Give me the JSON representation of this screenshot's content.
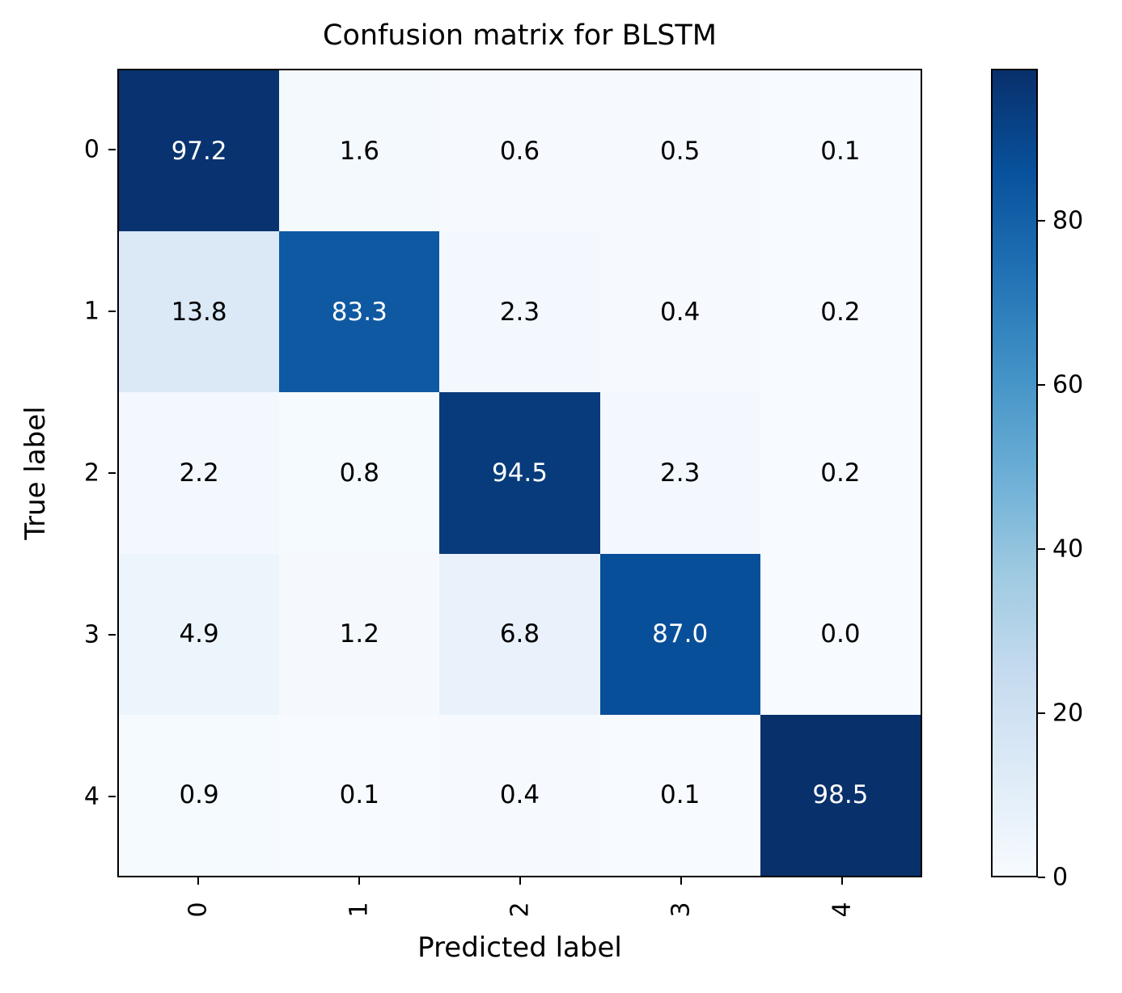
{
  "figure": {
    "title": "Confusion matrix for BLSTM",
    "xlabel": "Predicted label",
    "ylabel": "True label"
  },
  "chart_data": {
    "type": "heatmap",
    "title": "Confusion matrix for BLSTM",
    "xlabel": "Predicted label",
    "ylabel": "True label",
    "x_tick_labels": [
      "0",
      "1",
      "2",
      "3",
      "4"
    ],
    "y_tick_labels": [
      "0",
      "1",
      "2",
      "3",
      "4"
    ],
    "matrix": [
      [
        97.2,
        1.6,
        0.6,
        0.5,
        0.1
      ],
      [
        13.8,
        83.3,
        2.3,
        0.4,
        0.2
      ],
      [
        2.2,
        0.8,
        94.5,
        2.3,
        0.2
      ],
      [
        4.9,
        1.2,
        6.8,
        87.0,
        0.0
      ],
      [
        0.9,
        0.1,
        0.4,
        0.1,
        98.5
      ]
    ],
    "value_decimals": 1,
    "colormap": "Blues",
    "vmin": 0,
    "vmax": 98.5,
    "colorbar_ticks": [
      0,
      20,
      40,
      60,
      80
    ],
    "colorbar_position": "right",
    "grid": false,
    "x_tick_rotation_deg": 90
  },
  "colors": {
    "blues_stops": [
      "#f7fbff",
      "#deebf7",
      "#c6dbef",
      "#9ecae1",
      "#6baed6",
      "#4292c6",
      "#2171b5",
      "#08519c",
      "#08306b"
    ],
    "cell_text_dark": "#000000",
    "cell_text_light": "#ffffff",
    "axis_color": "#000000",
    "background": "#ffffff"
  }
}
